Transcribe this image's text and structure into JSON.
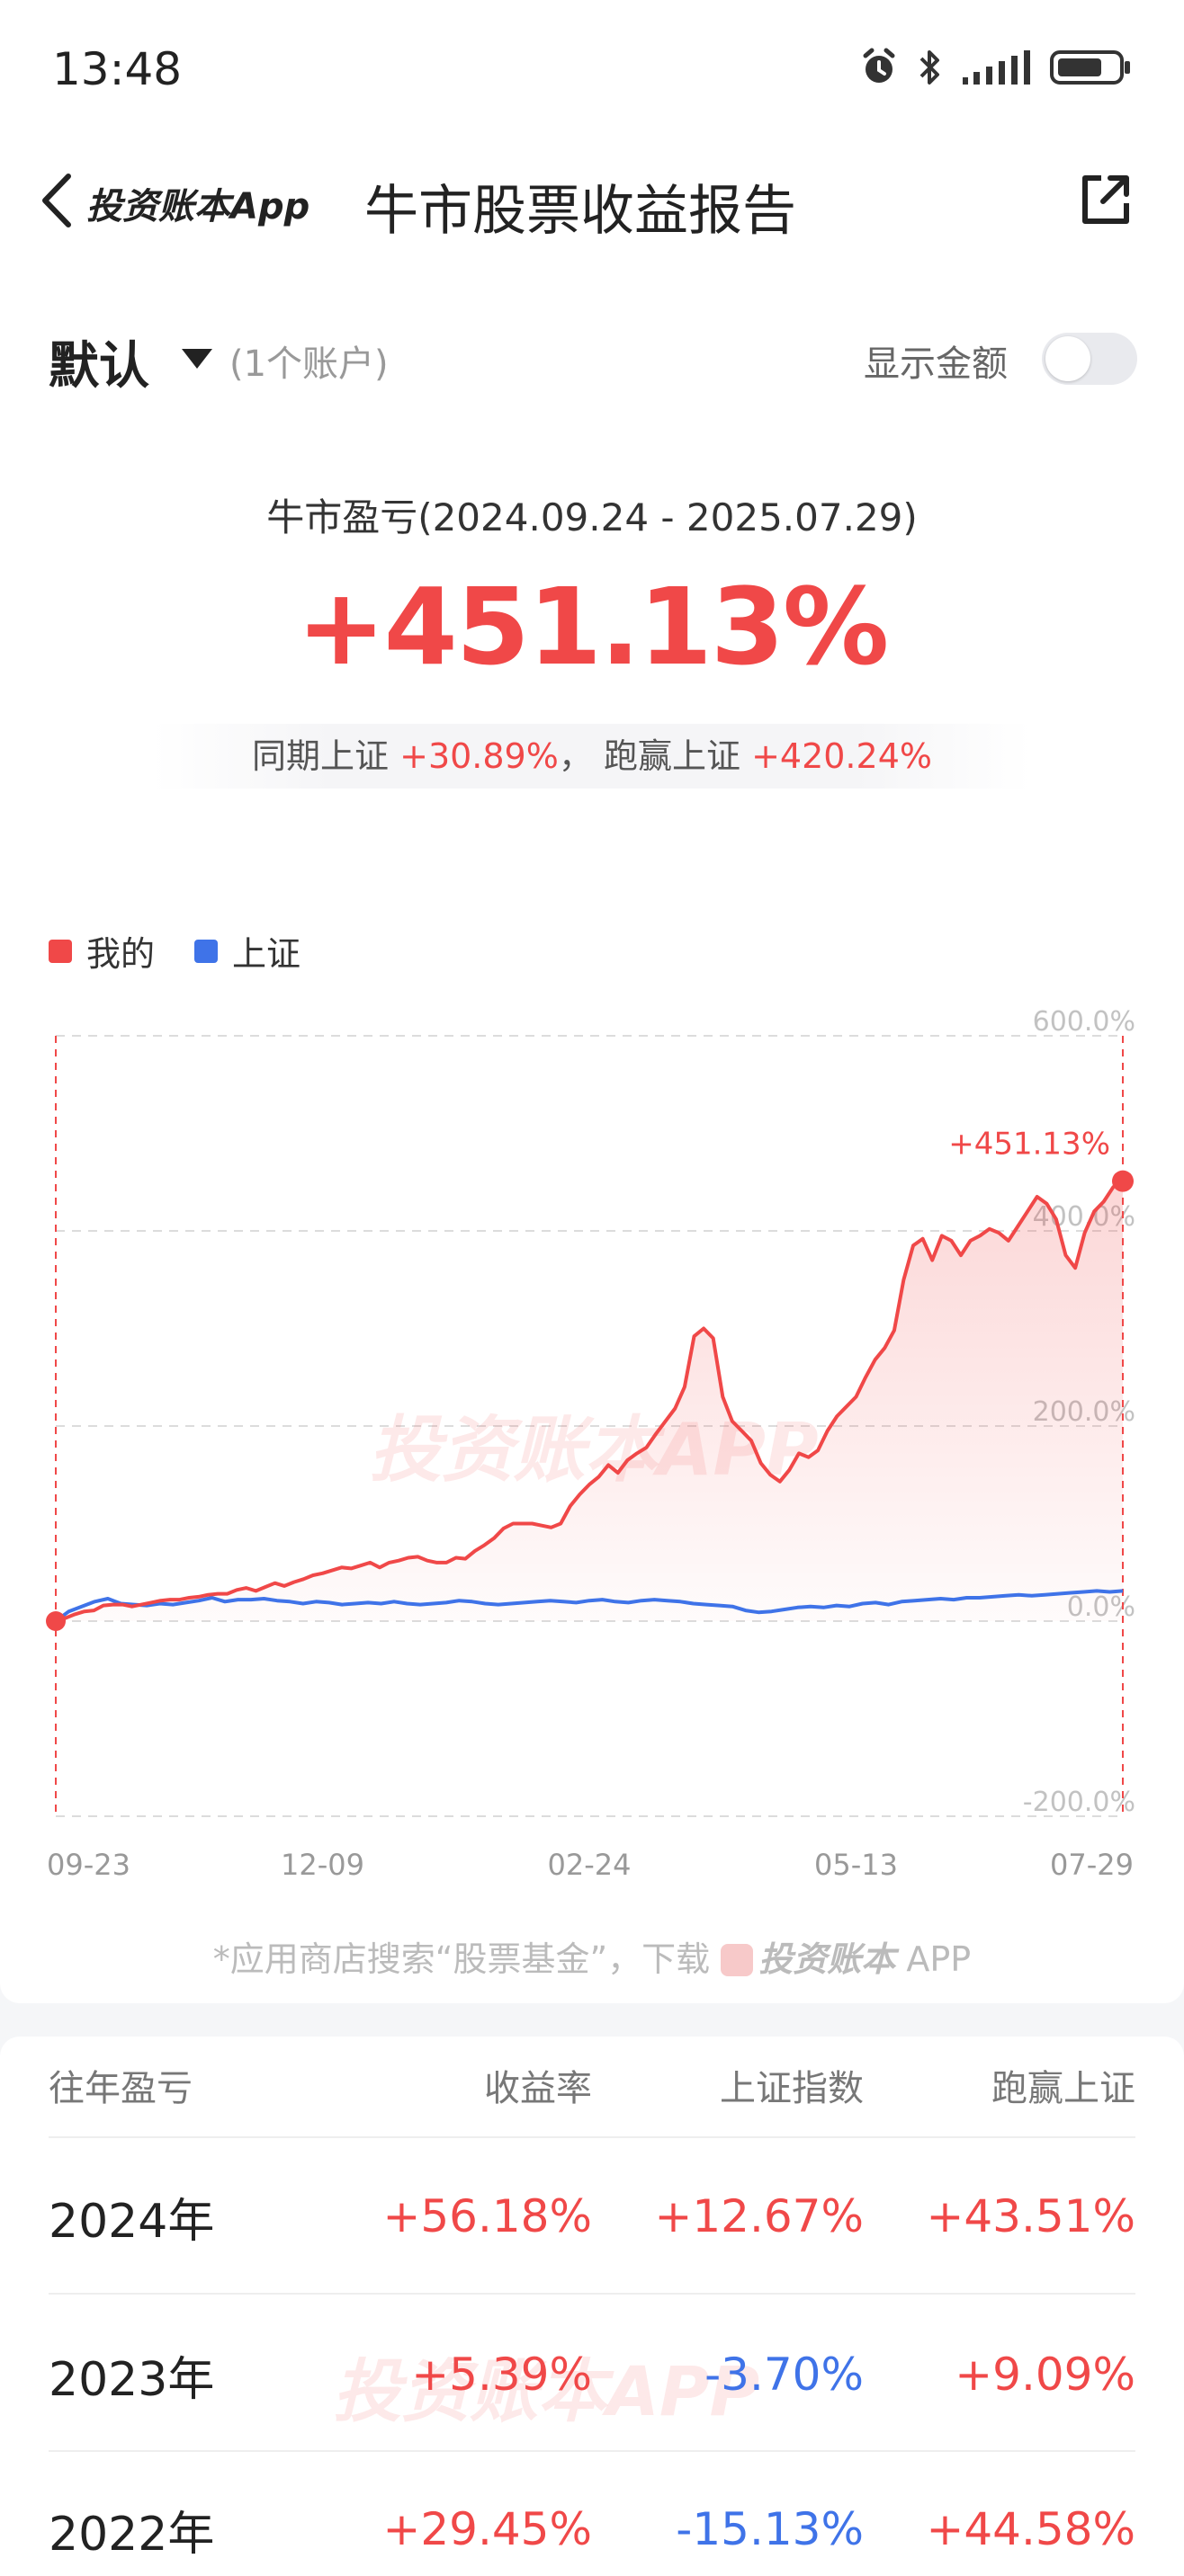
{
  "status_bar": {
    "time": "13:48",
    "icons": [
      "alarm-icon",
      "bluetooth-icon",
      "signal-icon",
      "battery-icon"
    ]
  },
  "nav": {
    "back_label": "投资账本App",
    "title": "牛市股票收益报告",
    "share_icon": "share-icon"
  },
  "account": {
    "name": "默认",
    "count": "(1个账户)",
    "show_amount_label": "显示金额",
    "show_amount_on": false
  },
  "summary": {
    "period": "牛市盈亏(2024.09.24 - 2025.07.29)",
    "return_pct": "+451.13%",
    "benchmark_label": "同期上证",
    "benchmark_pct": "+30.89%",
    "separator": "，",
    "beat_label": "跑赢上证",
    "beat_pct": "+420.24%"
  },
  "legend": {
    "mine": "我的",
    "index": "上证"
  },
  "colors": {
    "red": "#f04848",
    "blue": "#3f73e8"
  },
  "chart_data": {
    "type": "line",
    "x_ticks": [
      "09-23",
      "12-09",
      "02-24",
      "05-13",
      "07-29"
    ],
    "y_ticks": [
      "600.0%",
      "400.0%",
      "200.0%",
      "0.0%",
      "-200.0%"
    ],
    "ylim": [
      -200,
      600
    ],
    "end_label": "+451.13%",
    "watermark": "投资账本APP",
    "series": [
      {
        "name": "我的",
        "color": "#f04848",
        "values": [
          0,
          3,
          7,
          10,
          11,
          16,
          17,
          17,
          15,
          17,
          19,
          21,
          22,
          22,
          24,
          25,
          27,
          28,
          28,
          32,
          34,
          31,
          35,
          39,
          36,
          40,
          43,
          47,
          49,
          52,
          55,
          54,
          57,
          60,
          55,
          60,
          62,
          65,
          66,
          62,
          60,
          60,
          65,
          64,
          72,
          78,
          85,
          95,
          100,
          100,
          100,
          98,
          96,
          100,
          118,
          130,
          140,
          148,
          160,
          152,
          165,
          172,
          178,
          192,
          205,
          218,
          240,
          292,
          300,
          290,
          230,
          205,
          195,
          185,
          162,
          150,
          143,
          155,
          172,
          168,
          175,
          195,
          210,
          220,
          230,
          250,
          268,
          280,
          298,
          350,
          385,
          392,
          370,
          395,
          390,
          375,
          390,
          395,
          402,
          398,
          390,
          405,
          420,
          435,
          428,
          412,
          375,
          362,
          398,
          420,
          430,
          445,
          451
        ]
      },
      {
        "name": "上证",
        "color": "#3f73e8",
        "values": [
          0,
          10,
          15,
          20,
          23,
          18,
          17,
          16,
          18,
          17,
          19,
          21,
          24,
          20,
          22,
          22,
          23,
          21,
          20,
          18,
          20,
          19,
          17,
          18,
          19,
          18,
          20,
          18,
          17,
          18,
          19,
          21,
          20,
          18,
          17,
          18,
          19,
          20,
          21,
          20,
          19,
          21,
          22,
          20,
          19,
          21,
          22,
          21,
          20,
          18,
          17,
          16,
          15,
          11,
          9,
          10,
          12,
          14,
          15,
          14,
          16,
          15,
          18,
          19,
          17,
          20,
          21,
          22,
          23,
          22,
          24,
          24,
          25,
          26,
          27,
          26,
          27,
          28,
          29,
          30,
          31,
          30,
          31
        ]
      }
    ]
  },
  "footnote": {
    "prefix": "*应用商店搜索“股票基金”，下载",
    "brand": "投资账本",
    "suffix": " APP"
  },
  "table": {
    "headers": [
      "往年盈亏",
      "收益率",
      "上证指数",
      "跑赢上证"
    ],
    "rows": [
      {
        "year": "2024年",
        "ret": "+56.18%",
        "idx": "+12.67%",
        "beat": "+43.51%"
      },
      {
        "year": "2023年",
        "ret": "+5.39%",
        "idx": "-3.70%",
        "beat": "+9.09%"
      },
      {
        "year": "2022年",
        "ret": "+29.45%",
        "idx": "-15.13%",
        "beat": "+44.58%"
      }
    ],
    "watermark": "投资账本APP"
  }
}
